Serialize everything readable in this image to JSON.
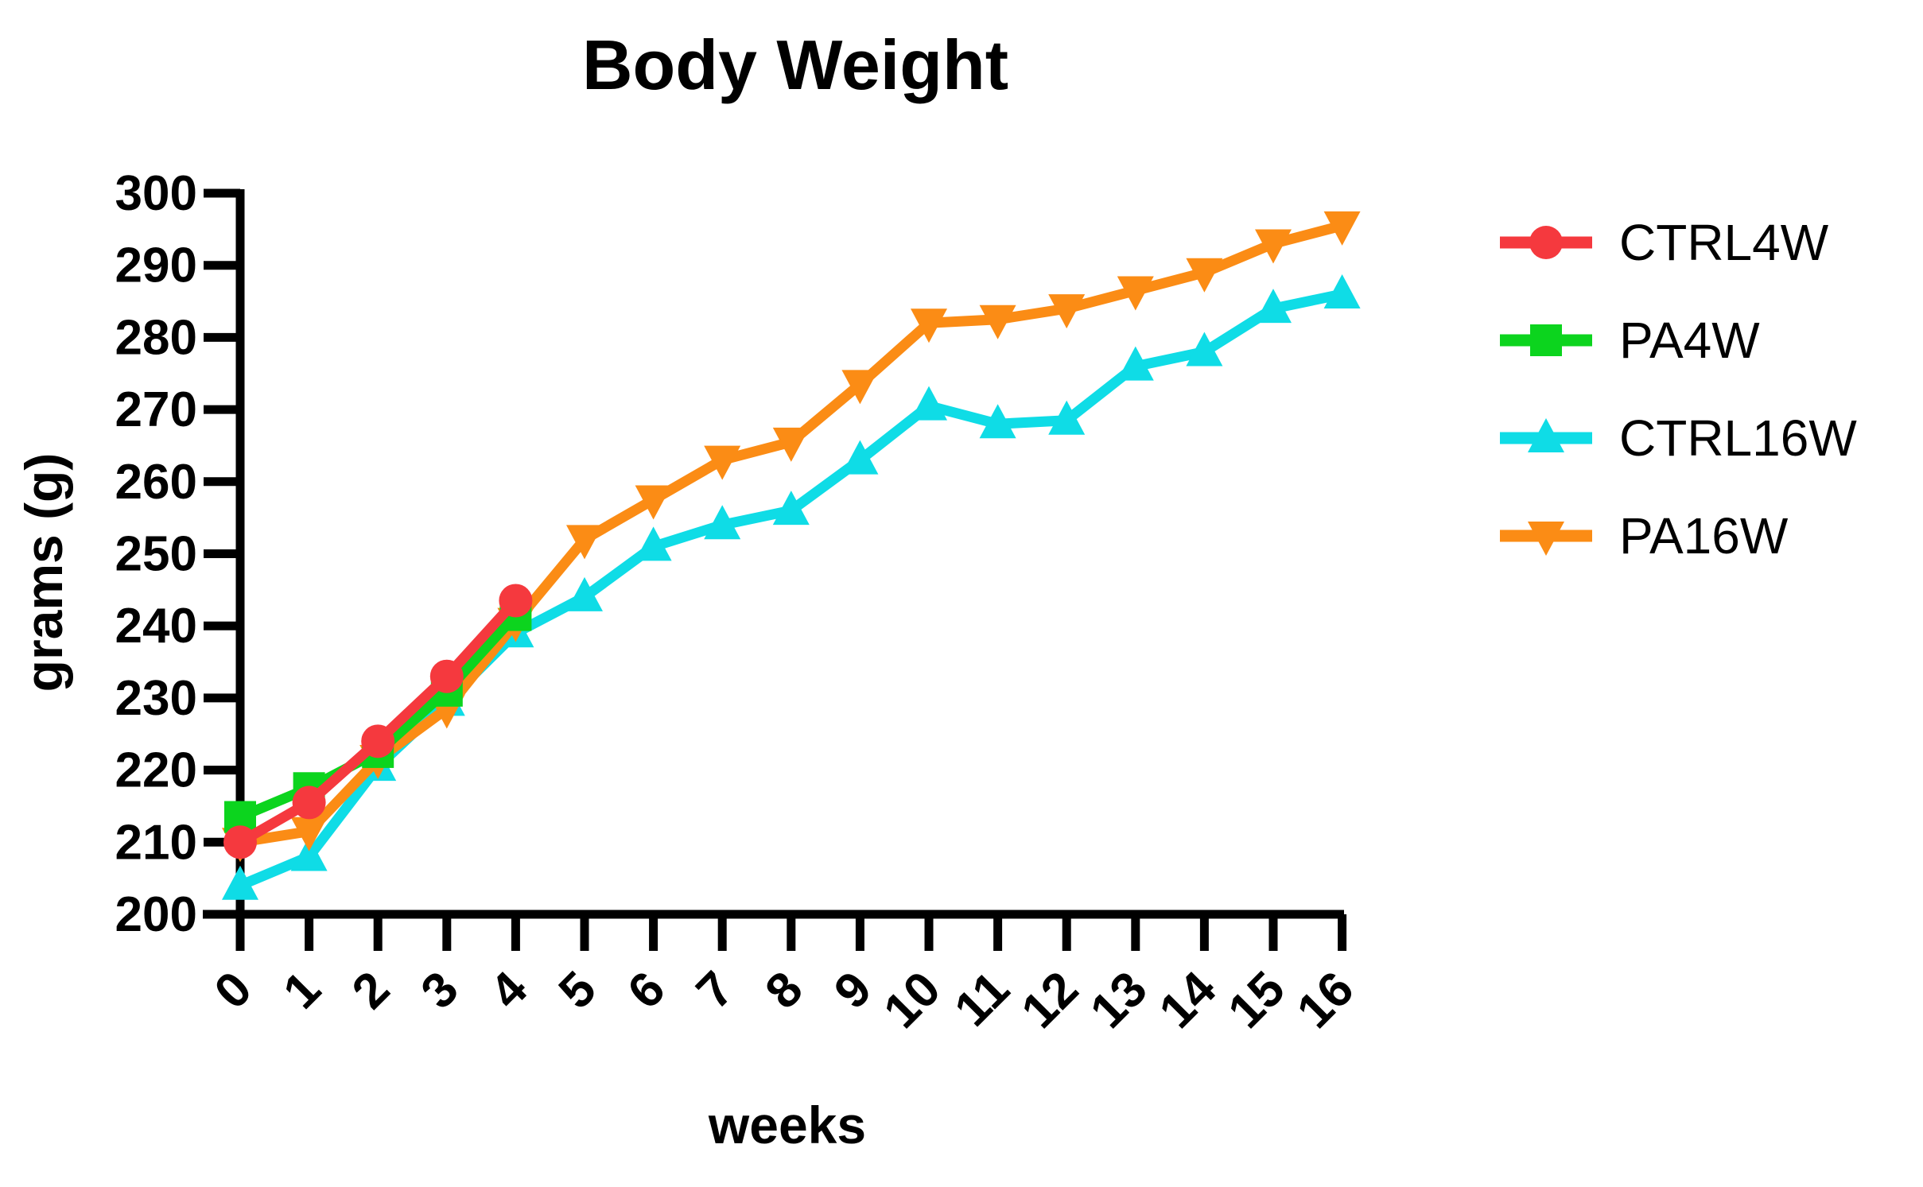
{
  "title": "Body Weight",
  "y_axis": {
    "label": "grams (g)",
    "ticks": [
      300,
      290,
      280,
      270,
      260,
      250,
      240,
      230,
      220,
      210,
      200
    ]
  },
  "x_axis": {
    "label": "weeks",
    "ticks": [
      0,
      1,
      2,
      3,
      4,
      5,
      6,
      7,
      8,
      9,
      10,
      11,
      12,
      13,
      14,
      15,
      16
    ]
  },
  "chart_data": {
    "type": "line",
    "title": "Body Weight",
    "xlabel": "weeks",
    "ylabel": "grams (g)",
    "xlim": [
      0,
      16
    ],
    "ylim": [
      200,
      300
    ],
    "ytick_step": 10,
    "grid": false,
    "legend_position": "right",
    "x": [
      0,
      1,
      2,
      3,
      4,
      5,
      6,
      7,
      8,
      9,
      10,
      11,
      12,
      13,
      14,
      15,
      16
    ],
    "series": [
      {
        "name": "CTRL4W",
        "color": "#F5393E",
        "marker": "circle",
        "values": [
          210,
          215.5,
          224,
          233,
          243.5
        ]
      },
      {
        "name": "PA4W",
        "color": "#0CD41E",
        "marker": "square",
        "values": [
          213.5,
          217.5,
          222.5,
          231,
          241.5
        ]
      },
      {
        "name": "CTRL16W",
        "color": "#0FDCE6",
        "marker": "triangle-up",
        "values": [
          204,
          208,
          220.5,
          229.5,
          239,
          244,
          251,
          254,
          256,
          263,
          270.5,
          268,
          268.5,
          276,
          278,
          284,
          286
        ]
      },
      {
        "name": "PA16W",
        "color": "#FB8C15",
        "marker": "triangle-down",
        "values": [
          210,
          211.5,
          221.5,
          228.5,
          240.5,
          252,
          257.5,
          263,
          265.5,
          273.5,
          282,
          282.5,
          284,
          286.5,
          289,
          293,
          295.5
        ]
      }
    ]
  }
}
